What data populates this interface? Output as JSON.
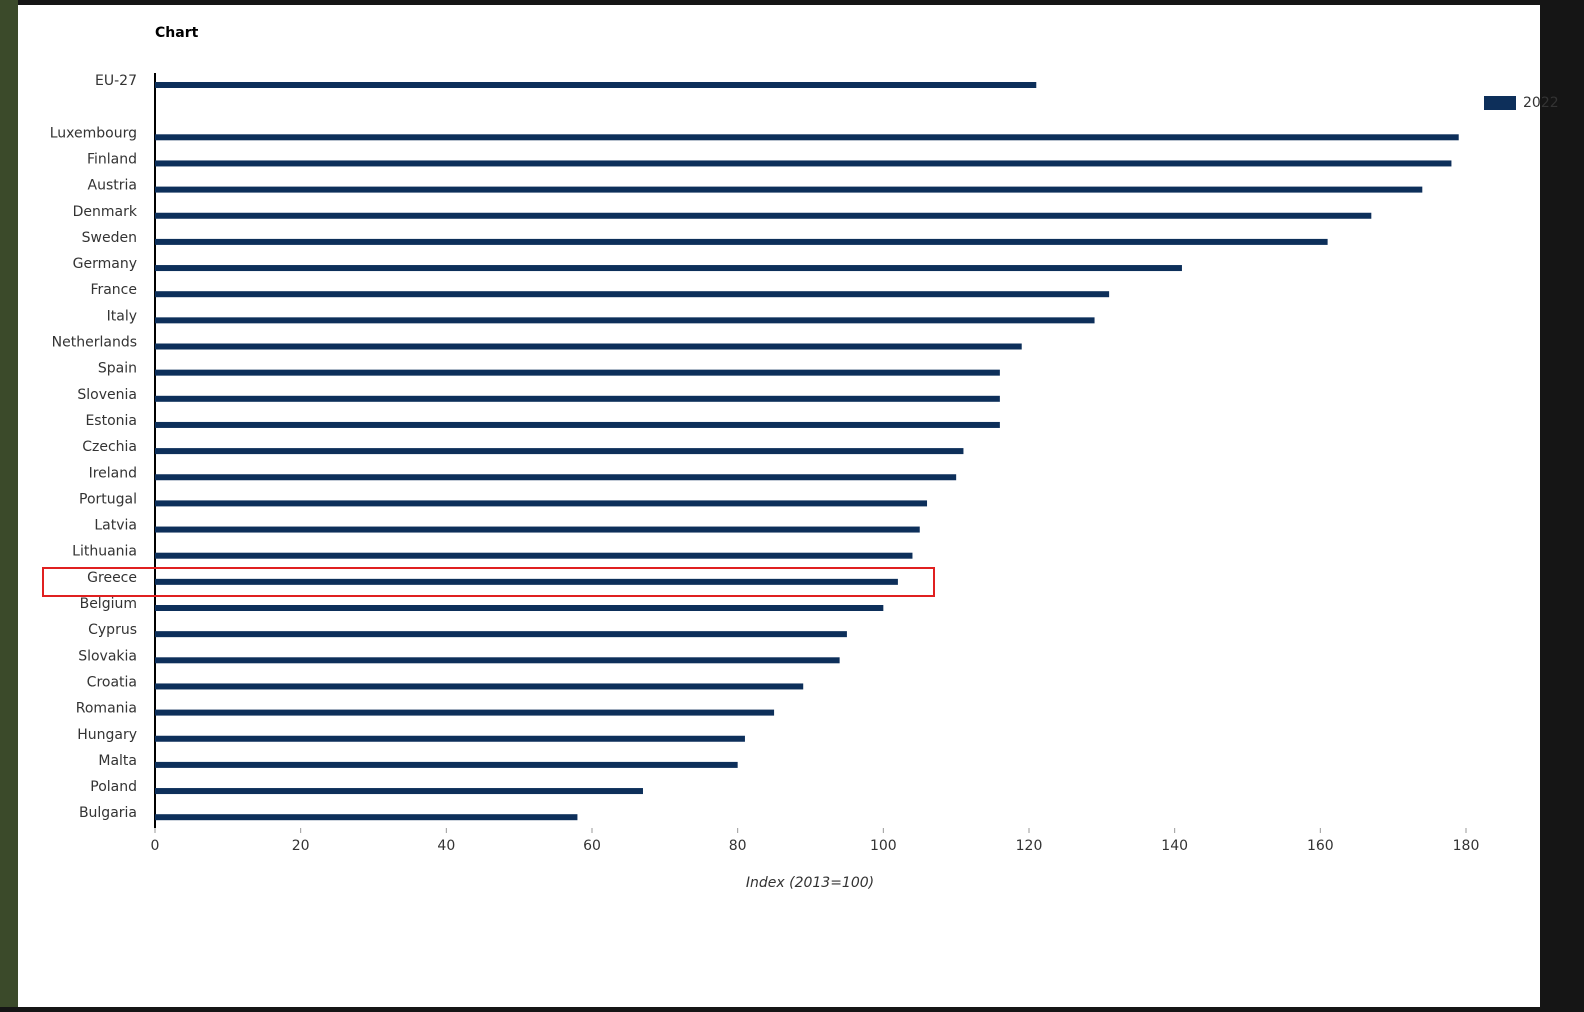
{
  "chart_data": {
    "type": "bar",
    "orientation": "horizontal",
    "title": "Chart",
    "x_label": "Index (2013=100)",
    "categories": [
      "EU-27",
      null,
      "Luxembourg",
      "Finland",
      "Austria",
      "Denmark",
      "Sweden",
      "Germany",
      "France",
      "Italy",
      "Netherlands",
      "Spain",
      "Slovenia",
      "Estonia",
      "Czechia",
      "Ireland",
      "Portugal",
      "Latvia",
      "Lithuania",
      "Greece",
      "Belgium",
      "Cyprus",
      "Slovakia",
      "Croatia",
      "Romania",
      "Hungary",
      "Malta",
      "Poland",
      "Bulgaria"
    ],
    "series": [
      {
        "name": "2022",
        "color": "#0d2f5a",
        "values": [
          121,
          null,
          179,
          178,
          174,
          167,
          161,
          141,
          131,
          129,
          119,
          116,
          116,
          116,
          111,
          110,
          106,
          105,
          104,
          102,
          100,
          95,
          94,
          89,
          85,
          81,
          80,
          67,
          58
        ]
      }
    ],
    "xlim": [
      0,
      180
    ],
    "xticks": [
      0,
      20,
      40,
      60,
      80,
      100,
      120,
      140,
      160,
      180
    ],
    "grid": false,
    "legend": "top-right"
  }
}
